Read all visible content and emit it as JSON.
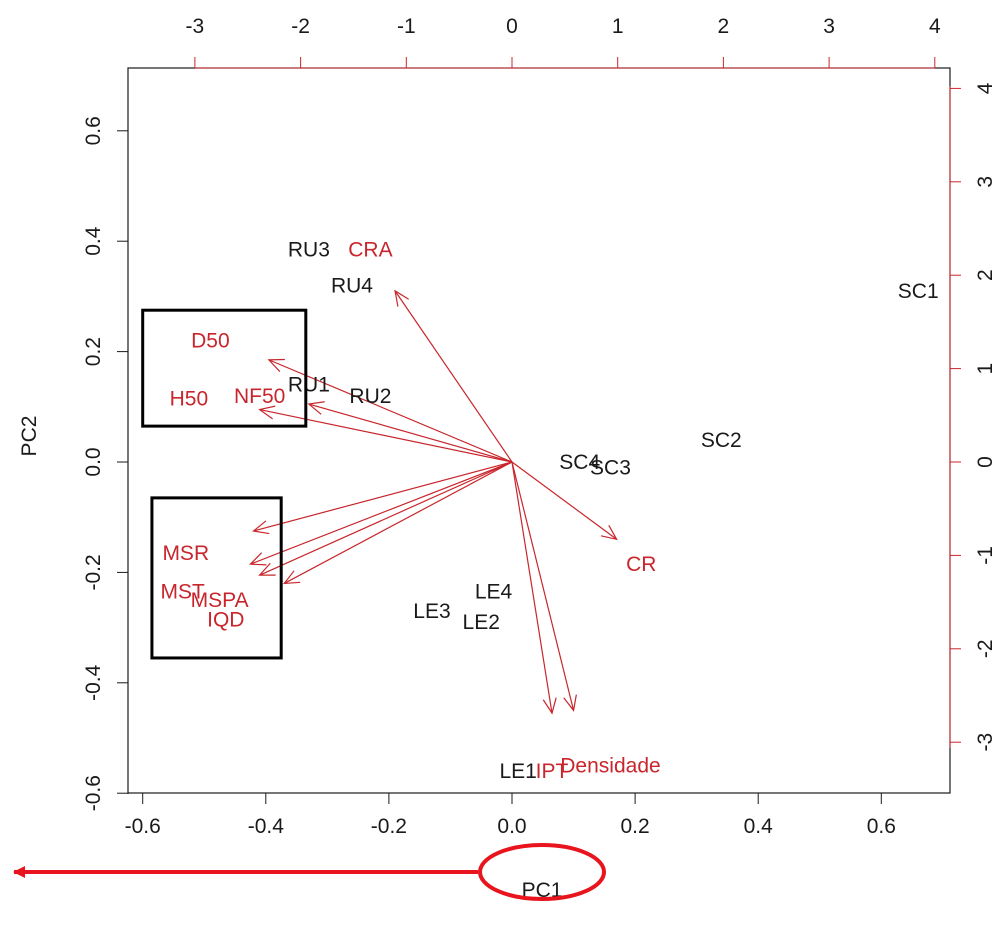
{
  "chart_data": {
    "type": "scatter",
    "subtype": "pca-biplot",
    "xlabel": "PC1",
    "ylabel": "PC2",
    "primary_axes": {
      "xlim": [
        -0.6,
        0.7
      ],
      "ylim": [
        -0.6,
        0.7
      ],
      "x_ticks": [
        "-0.6",
        "-0.4",
        "-0.2",
        "0.0",
        "0.2",
        "0.4",
        "0.6"
      ],
      "y_ticks": [
        "-0.6",
        "-0.4",
        "-0.2",
        "0.0",
        "0.2",
        "0.4",
        "0.6"
      ]
    },
    "secondary_axes": {
      "xlim": [
        -3.0,
        4.0
      ],
      "x_ticks": [
        "-3",
        "-2",
        "-1",
        "0",
        "1",
        "2",
        "3",
        "4"
      ],
      "y_ticks": [
        "-3",
        "-2",
        "-1",
        "0",
        "1",
        "2",
        "3",
        "4"
      ]
    },
    "observations": [
      {
        "label": "RU3",
        "x": -0.33,
        "y": 0.385
      },
      {
        "label": "RU4",
        "x": -0.26,
        "y": 0.32
      },
      {
        "label": "RU1",
        "x": -0.33,
        "y": 0.14
      },
      {
        "label": "RU2",
        "x": -0.23,
        "y": 0.12
      },
      {
        "label": "SC1",
        "x": 0.66,
        "y": 0.31
      },
      {
        "label": "SC2",
        "x": 0.34,
        "y": 0.04
      },
      {
        "label": "SC4",
        "x": 0.11,
        "y": 0.0
      },
      {
        "label": "SC3",
        "x": 0.16,
        "y": -0.01
      },
      {
        "label": "LE4",
        "x": -0.03,
        "y": -0.235
      },
      {
        "label": "LE3",
        "x": -0.13,
        "y": -0.27
      },
      {
        "label": "LE2",
        "x": -0.05,
        "y": -0.29
      },
      {
        "label": "LE1",
        "x": 0.01,
        "y": -0.56
      }
    ],
    "variables": [
      {
        "label": "CRA",
        "x_end": -0.19,
        "y_end": 0.31,
        "label_x": -0.23,
        "label_y": 0.385
      },
      {
        "label": "D50",
        "x_end": -0.395,
        "y_end": 0.185,
        "label_x": -0.49,
        "label_y": 0.22
      },
      {
        "label": "NF50",
        "x_end": -0.41,
        "y_end": 0.095,
        "label_x": -0.41,
        "label_y": 0.12
      },
      {
        "label": "H50",
        "x_end": -0.33,
        "y_end": 0.105,
        "label_x": -0.525,
        "label_y": 0.115
      },
      {
        "label": "MSR",
        "x_end": -0.42,
        "y_end": -0.125,
        "label_x": -0.53,
        "label_y": -0.165
      },
      {
        "label": "MST",
        "x_end": -0.425,
        "y_end": -0.185,
        "label_x": -0.535,
        "label_y": -0.235
      },
      {
        "label": "MSPA",
        "x_end": -0.41,
        "y_end": -0.205,
        "label_x": -0.475,
        "label_y": -0.25
      },
      {
        "label": "IQD",
        "x_end": -0.37,
        "y_end": -0.22,
        "label_x": -0.465,
        "label_y": -0.285
      },
      {
        "label": "CR",
        "x_end": 0.17,
        "y_end": -0.14,
        "label_x": 0.21,
        "label_y": -0.185
      },
      {
        "label": "Densidade",
        "x_end": 0.065,
        "y_end": -0.455,
        "label_x": 0.16,
        "label_y": -0.55
      },
      {
        "label": "IPT",
        "x_end": 0.1,
        "y_end": -0.45,
        "label_x": 0.065,
        "label_y": -0.56
      }
    ],
    "colors": {
      "observation": "#1a1a1a",
      "variable": "#c8262c",
      "annotation": "#e8141e",
      "box": "#000000"
    },
    "highlight_boxes": [
      {
        "x0": -0.6,
        "x1": -0.335,
        "y0": 0.065,
        "y1": 0.275
      },
      {
        "x0": -0.585,
        "x1": -0.375,
        "y0": -0.355,
        "y1": -0.065
      }
    ],
    "annotation": {
      "arrow_from": 0.0,
      "arrow_to": -0.74,
      "circle_label": "PC1"
    },
    "grid": false,
    "legend": "none"
  }
}
